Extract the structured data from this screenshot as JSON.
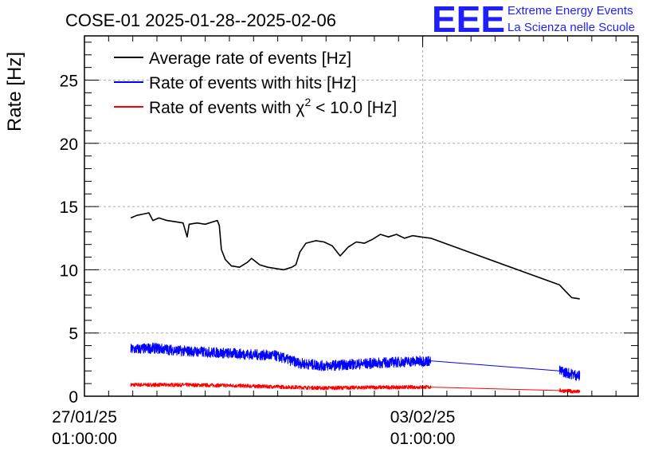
{
  "chart_data": {
    "type": "line",
    "title": "COSE-01 2025-01-28--2025-02-06",
    "ylabel": "Rate [Hz]",
    "xlabel": "",
    "xlim": [
      "2025-01-27T01:00:00",
      "2025-02-07T12:00:00"
    ],
    "ylim": [
      0,
      28.5
    ],
    "yticks": [
      0,
      5,
      10,
      15,
      20,
      25
    ],
    "ytick_labels": [
      "0",
      "5",
      "10",
      "15",
      "20",
      "25"
    ],
    "xticks": [
      {
        "x": "2025-01-27T01:00:00",
        "date": "27/01/25",
        "time": "01:00:00"
      },
      {
        "x": "2025-02-03T01:00:00",
        "date": "03/02/25",
        "time": "01:00:00"
      }
    ],
    "grid": true,
    "legend_position": "top-left",
    "series": [
      {
        "name": "Average rate of events [Hz]",
        "color": "#000000",
        "noise": 0,
        "points": [
          [
            "2025-01-28T00:00:00",
            14.1
          ],
          [
            "2025-01-28T03:00:00",
            14.3
          ],
          [
            "2025-01-28T06:00:00",
            14.4
          ],
          [
            "2025-01-28T09:00:00",
            14.5
          ],
          [
            "2025-01-28T11:00:00",
            13.9
          ],
          [
            "2025-01-28T14:00:00",
            14.1
          ],
          [
            "2025-01-28T18:00:00",
            13.9
          ],
          [
            "2025-01-28T22:00:00",
            13.8
          ],
          [
            "2025-01-29T02:00:00",
            13.7
          ],
          [
            "2025-01-29T04:00:00",
            12.6
          ],
          [
            "2025-01-29T05:00:00",
            13.6
          ],
          [
            "2025-01-29T09:00:00",
            13.7
          ],
          [
            "2025-01-29T13:00:00",
            13.6
          ],
          [
            "2025-01-29T17:00:00",
            13.8
          ],
          [
            "2025-01-29T19:00:00",
            13.9
          ],
          [
            "2025-01-29T20:00:00",
            13.5
          ],
          [
            "2025-01-29T21:00:00",
            11.6
          ],
          [
            "2025-01-29T23:00:00",
            10.8
          ],
          [
            "2025-01-30T02:00:00",
            10.3
          ],
          [
            "2025-01-30T06:00:00",
            10.2
          ],
          [
            "2025-01-30T10:00:00",
            10.6
          ],
          [
            "2025-01-30T12:00:00",
            10.9
          ],
          [
            "2025-01-30T16:00:00",
            10.4
          ],
          [
            "2025-01-30T20:00:00",
            10.2
          ],
          [
            "2025-01-31T00:00:00",
            10.1
          ],
          [
            "2025-01-31T04:00:00",
            10.0
          ],
          [
            "2025-01-31T08:00:00",
            10.2
          ],
          [
            "2025-01-31T10:00:00",
            10.4
          ],
          [
            "2025-01-31T12:00:00",
            11.4
          ],
          [
            "2025-01-31T15:00:00",
            12.1
          ],
          [
            "2025-01-31T20:00:00",
            12.3
          ],
          [
            "2025-02-01T00:00:00",
            12.2
          ],
          [
            "2025-02-01T04:00:00",
            11.9
          ],
          [
            "2025-02-01T08:00:00",
            11.1
          ],
          [
            "2025-02-01T12:00:00",
            11.8
          ],
          [
            "2025-02-01T16:00:00",
            12.2
          ],
          [
            "2025-02-01T20:00:00",
            12.1
          ],
          [
            "2025-02-02T00:00:00",
            12.4
          ],
          [
            "2025-02-02T04:00:00",
            12.8
          ],
          [
            "2025-02-02T08:00:00",
            12.6
          ],
          [
            "2025-02-02T12:00:00",
            12.8
          ],
          [
            "2025-02-02T16:00:00",
            12.5
          ],
          [
            "2025-02-02T20:00:00",
            12.7
          ],
          [
            "2025-02-03T00:00:00",
            12.6
          ],
          [
            "2025-02-03T05:00:00",
            12.5
          ],
          [
            "2025-02-05T21:00:00",
            8.8
          ],
          [
            "2025-02-06T00:00:00",
            8.3
          ],
          [
            "2025-02-06T03:00:00",
            7.8
          ],
          [
            "2025-02-06T07:00:00",
            7.7
          ]
        ]
      },
      {
        "name": "Rate of events with hits [Hz]",
        "color": "#0000ff",
        "noise": 0.42,
        "points": [
          [
            "2025-01-28T00:00:00",
            3.7
          ],
          [
            "2025-01-28T12:00:00",
            3.8
          ],
          [
            "2025-01-29T00:00:00",
            3.6
          ],
          [
            "2025-01-29T12:00:00",
            3.5
          ],
          [
            "2025-01-30T00:00:00",
            3.4
          ],
          [
            "2025-01-30T12:00:00",
            3.3
          ],
          [
            "2025-01-31T00:00:00",
            3.2
          ],
          [
            "2025-01-31T12:00:00",
            2.6
          ],
          [
            "2025-02-01T00:00:00",
            2.4
          ],
          [
            "2025-02-01T12:00:00",
            2.5
          ],
          [
            "2025-02-02T00:00:00",
            2.6
          ],
          [
            "2025-02-02T12:00:00",
            2.7
          ],
          [
            "2025-02-03T05:00:00",
            2.8
          ],
          [
            "2025-02-05T21:00:00",
            2.0
          ],
          [
            "2025-02-06T07:00:00",
            1.6
          ]
        ]
      },
      {
        "name": "Rate of events with χ² < 10.0 [Hz]",
        "color": "#ff0000",
        "noise": 0.15,
        "points": [
          [
            "2025-01-28T00:00:00",
            0.9
          ],
          [
            "2025-01-29T00:00:00",
            0.9
          ],
          [
            "2025-01-30T00:00:00",
            0.85
          ],
          [
            "2025-01-31T00:00:00",
            0.75
          ],
          [
            "2025-02-01T00:00:00",
            0.65
          ],
          [
            "2025-02-02T00:00:00",
            0.7
          ],
          [
            "2025-02-03T05:00:00",
            0.72
          ],
          [
            "2025-02-05T21:00:00",
            0.45
          ],
          [
            "2025-02-06T07:00:00",
            0.35
          ]
        ]
      }
    ]
  },
  "legend": {
    "label_1": "Average rate of events [Hz]",
    "label_2": "Rate of events with hits [Hz]",
    "label_3_prefix": "Rate of events with χ",
    "label_3_sup": "2",
    "label_3_suffix": " < 10.0 [Hz]"
  },
  "logo": {
    "letters": "EEE",
    "line1": "Extreme Energy Events",
    "line2": "La Scienza nelle Scuole",
    "color": "#1e1eff"
  }
}
